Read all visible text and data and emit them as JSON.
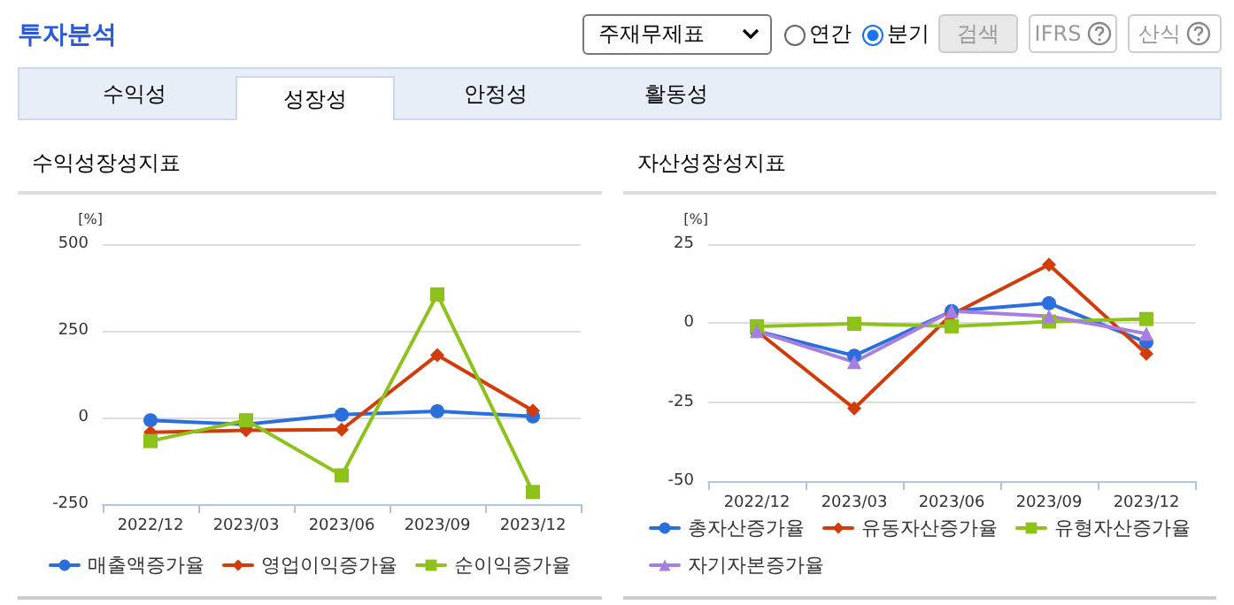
{
  "chart_data": [
    {
      "type": "other",
      "title": "투자분석",
      "annotations": [
        "주재무제표",
        "연간",
        "분기",
        "검색",
        "IFRS",
        "산식",
        "수익성",
        "성장성",
        "안정성",
        "활동성"
      ]
    },
    {
      "type": "line",
      "title": "수익성장성지표",
      "ylabel": "[%]",
      "categories": [
        "2022/12",
        "2023/03",
        "2023/06",
        "2023/09",
        "2023/12"
      ],
      "ylim": [
        -250,
        500
      ],
      "yticks": [
        -250,
        0,
        250,
        500
      ],
      "grid": "y",
      "legend": "bottom",
      "line_style": "solid",
      "series": [
        {
          "name": "매출액증가율",
          "color": "#2a6fdb",
          "marker": "circle",
          "values": [
            -8,
            -20,
            8,
            18,
            3
          ]
        },
        {
          "name": "영업이익증가율",
          "color": "#d23c0a",
          "marker": "diamond",
          "values": [
            -43,
            -37,
            -35,
            180,
            20
          ]
        },
        {
          "name": "순이익증가율",
          "color": "#8cc21a",
          "marker": "square",
          "values": [
            -68,
            -8,
            -167,
            355,
            -215
          ]
        }
      ]
    },
    {
      "type": "line",
      "title": "자산성장성지표",
      "ylabel": "[%]",
      "categories": [
        "2022/12",
        "2023/03",
        "2023/06",
        "2023/09",
        "2023/12"
      ],
      "ylim": [
        -50,
        25
      ],
      "yticks": [
        -50,
        -25,
        0,
        25
      ],
      "grid": "y",
      "legend": "bottom",
      "line_style": "solid",
      "series": [
        {
          "name": "총자산증가율",
          "color": "#2a6fdb",
          "marker": "circle",
          "values": [
            -2.5,
            -10.3,
            3.8,
            6.3,
            -6
          ]
        },
        {
          "name": "유동자산증가율",
          "color": "#d23c0a",
          "marker": "diamond",
          "values": [
            -2.5,
            -27,
            2.7,
            18.5,
            -9.7
          ]
        },
        {
          "name": "유형자산증가율",
          "color": "#8cc21a",
          "marker": "square",
          "values": [
            -1,
            -0.2,
            -1,
            0.5,
            1.3
          ]
        },
        {
          "name": "자기자본증가율",
          "color": "#a77fe0",
          "marker": "triangle",
          "values": [
            -2.5,
            -12.3,
            3.8,
            2.2,
            -3.3
          ]
        }
      ]
    }
  ]
}
